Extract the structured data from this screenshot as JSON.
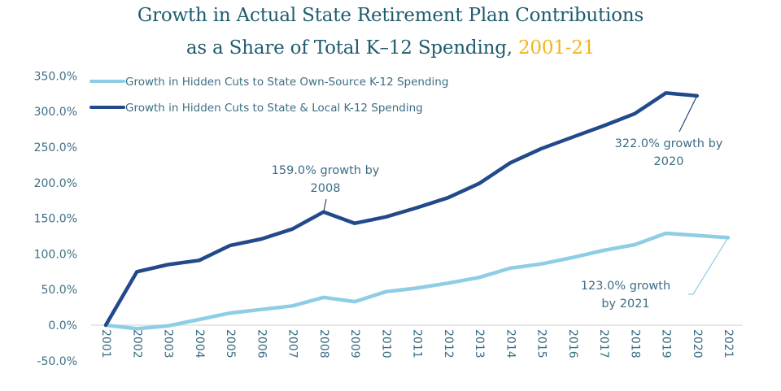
{
  "title": {
    "line1": "Growth in Actual State Retirement Plan Contributions",
    "line2_prefix": "as a Share of Total K–12 Spending, ",
    "line2_accent": "2001-21",
    "accent_color": "#f2b41c",
    "color": "#1f5c6e"
  },
  "chart_data": {
    "type": "line",
    "title": "Growth in Actual State Retirement Plan Contributions as a Share of Total K–12 Spending, 2001-21",
    "xlabel": "",
    "ylabel": "",
    "x": [
      "2001",
      "2002",
      "2003",
      "2004",
      "2005",
      "2006",
      "2007",
      "2008",
      "2009",
      "2010",
      "2011",
      "2012",
      "2013",
      "2014",
      "2015",
      "2016",
      "2017",
      "2018",
      "2019",
      "2020",
      "2021"
    ],
    "ylim": [
      -50,
      350
    ],
    "yticks": [
      -50,
      0,
      50,
      100,
      150,
      200,
      250,
      300,
      350
    ],
    "ytick_labels": [
      "-50.0%",
      "0.0%",
      "50.0%",
      "100.0%",
      "150.0%",
      "200.0%",
      "250.0%",
      "300.0%",
      "350.0%"
    ],
    "grid": false,
    "legend_position": "top-left",
    "series": [
      {
        "name": "Growth in Hidden Cuts to State Own-Source K-12 Spending",
        "color": "#8ecde4",
        "values": [
          0,
          -5,
          -1,
          8,
          17,
          22,
          27,
          39,
          33,
          47,
          52,
          59,
          67,
          80,
          86,
          95,
          105,
          113,
          129,
          126,
          123
        ]
      },
      {
        "name": "Growth in Hidden Cuts to State & Local K-12 Spending",
        "color": "#22498a",
        "values": [
          0,
          75,
          85,
          91,
          112,
          121,
          135,
          159,
          143,
          152,
          165,
          179,
          199,
          228,
          248,
          264,
          280,
          297,
          326,
          322,
          null
        ]
      }
    ],
    "annotations": [
      {
        "series": 1,
        "x": "2008",
        "value": 159,
        "lines": [
          "159.0% growth by",
          "2008"
        ]
      },
      {
        "series": 1,
        "x": "2020",
        "value": 322,
        "lines": [
          "322.0% growth by",
          "2020"
        ]
      },
      {
        "series": 0,
        "x": "2021",
        "value": 123,
        "lines": [
          "123.0% growth",
          "by 2021"
        ]
      }
    ]
  },
  "colors": {
    "axis_text": "#3d6e84",
    "zero_line": "#d9d9d9"
  }
}
